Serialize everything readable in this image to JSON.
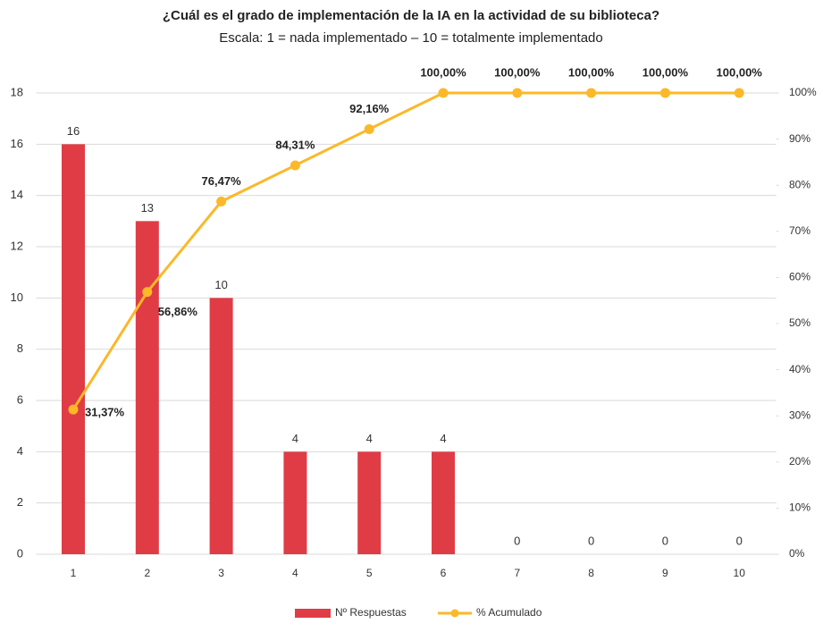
{
  "chart_data": {
    "type": "bar_line",
    "title": "¿Cuál es el grado de implementación de la IA en la actividad de su biblioteca?",
    "subtitle": "Escala: 1 = nada implementado – 10 = totalmente implementado",
    "categories": [
      "1",
      "2",
      "3",
      "4",
      "5",
      "6",
      "7",
      "8",
      "9",
      "10"
    ],
    "series": [
      {
        "name": "Nº Respuestas",
        "color": "#e03c45",
        "values": [
          16,
          13,
          10,
          4,
          4,
          4,
          0,
          0,
          0,
          0
        ]
      },
      {
        "name": "% Acumulado",
        "color": "#fbb829",
        "axis": "y2",
        "values": [
          31.37,
          56.86,
          76.47,
          84.31,
          92.16,
          100,
          100,
          100,
          100,
          100
        ],
        "value_labels": [
          "31,37%",
          "56,86%",
          "76,47%",
          "84,31%",
          "92,16%",
          "100,00%",
          "100,00%",
          "100,00%",
          "100,00%",
          "100,00%"
        ]
      }
    ],
    "ylim": [
      0,
      18
    ],
    "yticks": [
      0,
      2,
      4,
      6,
      8,
      10,
      12,
      14,
      16,
      18
    ],
    "y2lim": [
      0,
      100
    ],
    "y2ticks": [
      {
        "value": 0,
        "label": "0%"
      },
      {
        "value": 10,
        "label": "10%"
      },
      {
        "value": 20,
        "label": "20%"
      },
      {
        "value": 30,
        "label": "30%"
      },
      {
        "value": 40,
        "label": "40%"
      },
      {
        "value": 50,
        "label": "50%"
      },
      {
        "value": 60,
        "label": "60%"
      },
      {
        "value": 70,
        "label": "70%"
      },
      {
        "value": 80,
        "label": "80%"
      },
      {
        "value": 90,
        "label": "90%"
      },
      {
        "value": 100,
        "label": "100%"
      }
    ],
    "grid": true,
    "legend": "bottom"
  }
}
